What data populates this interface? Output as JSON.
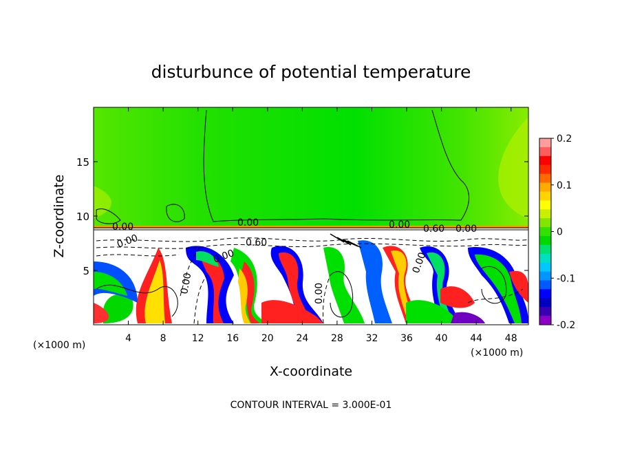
{
  "chart_data": {
    "type": "heatmap",
    "title": "disturbunce of potential temperature",
    "xlabel": "X-coordinate",
    "ylabel": "Z-coordinate",
    "x_unit_note_left": "(×1000 m)",
    "x_unit_note_right": "(×1000 m)",
    "xlim": [
      0,
      50
    ],
    "ylim": [
      0,
      20
    ],
    "x_ticks": [
      4,
      8,
      12,
      16,
      20,
      24,
      28,
      32,
      36,
      40,
      44,
      48
    ],
    "y_ticks": [
      5,
      10,
      15
    ],
    "colorbar": {
      "range": [
        -0.2,
        0.2
      ],
      "tick_labels": [
        "0.2",
        "0.1",
        "0",
        "-0.1",
        "-0.2"
      ],
      "tick_values": [
        0.2,
        0.1,
        0,
        -0.1,
        -0.2
      ],
      "colors": [
        "#ff9d9d",
        "#ff5c5c",
        "#ff0000",
        "#ff2a00",
        "#ff6a00",
        "#ffaa00",
        "#ffd400",
        "#ffff00",
        "#c8f000",
        "#80e600",
        "#33e000",
        "#00d800",
        "#00e070",
        "#00e0c0",
        "#00c8ff",
        "#0096ff",
        "#005aff",
        "#0000ff",
        "#0000c0",
        "#3c00b4",
        "#8c00c8"
      ]
    },
    "contour_labels": [
      "0.00",
      "0.00",
      "0.00",
      "0.00",
      "0.60",
      "0.60",
      "0.00",
      "0.00",
      "0.00",
      "0.00",
      "0.00"
    ],
    "footer": "CONTOUR INTERVAL = 3.000E-01"
  }
}
